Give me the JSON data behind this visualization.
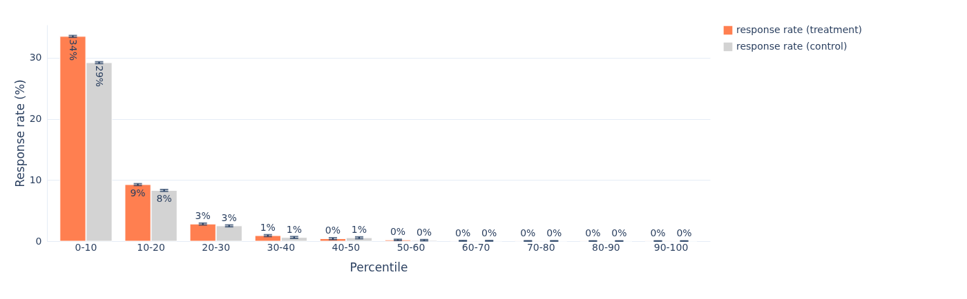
{
  "chart_data": {
    "type": "bar",
    "xlabel": "Percentile",
    "ylabel": "Response rate (%)",
    "categories": [
      "0-10",
      "10-20",
      "20-30",
      "30-40",
      "40-50",
      "50-60",
      "60-70",
      "70-80",
      "80-90",
      "90-100"
    ],
    "series": [
      {
        "name": "response rate (treatment)",
        "color": "#ff7f50",
        "values": [
          33.5,
          9.25,
          2.8,
          0.9,
          0.4,
          0.2,
          0.05,
          0.03,
          0.02,
          0.02
        ],
        "errors": [
          0.15,
          0.15,
          0.15,
          0.15,
          0.15,
          0.1,
          0.05,
          0.03,
          0.02,
          0.02
        ],
        "value_labels": [
          "34%",
          "9%",
          "3%",
          "1%",
          "0%",
          "0%",
          "0%",
          "0%",
          "0%",
          "0%"
        ]
      },
      {
        "name": "response rate (control)",
        "color": "#d3d3d3",
        "values": [
          29.2,
          8.3,
          2.5,
          0.6,
          0.55,
          0.15,
          0.05,
          0.03,
          0.02,
          0.02
        ],
        "errors": [
          0.15,
          0.15,
          0.15,
          0.15,
          0.15,
          0.1,
          0.05,
          0.03,
          0.02,
          0.02
        ],
        "value_labels": [
          "29%",
          "8%",
          "3%",
          "1%",
          "1%",
          "0%",
          "0%",
          "0%",
          "0%",
          "0%"
        ]
      }
    ],
    "ylim": [
      0,
      35.4
    ],
    "yticks": [
      0,
      10,
      20,
      30
    ],
    "grid": "y",
    "legend": "top right"
  }
}
